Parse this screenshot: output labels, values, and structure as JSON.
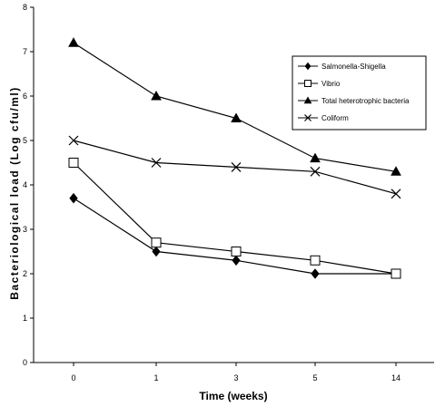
{
  "chart_data": {
    "type": "line",
    "title": "",
    "xlabel": "Time (weeks)",
    "ylabel": "Bacteriological load (Log cfu/ml)",
    "categories": [
      "0",
      "1",
      "3",
      "5",
      "14"
    ],
    "ylim": [
      0,
      8
    ],
    "yticks": [
      0,
      1,
      2,
      3,
      4,
      5,
      6,
      7,
      8
    ],
    "grid": false,
    "legend_position": "right",
    "series": [
      {
        "name": "Salmonella-Shigella",
        "marker": "diamond",
        "values": [
          3.7,
          2.5,
          2.3,
          2.0,
          2.0
        ]
      },
      {
        "name": "Vibrio",
        "marker": "square-open",
        "values": [
          4.5,
          2.7,
          2.5,
          2.3,
          2.0
        ]
      },
      {
        "name": "Total heterotrophic bacteria",
        "marker": "triangle",
        "values": [
          7.2,
          6.0,
          5.5,
          4.6,
          4.3
        ]
      },
      {
        "name": "Coliform",
        "marker": "x",
        "values": [
          5.0,
          4.5,
          4.4,
          4.3,
          3.8
        ]
      }
    ]
  }
}
